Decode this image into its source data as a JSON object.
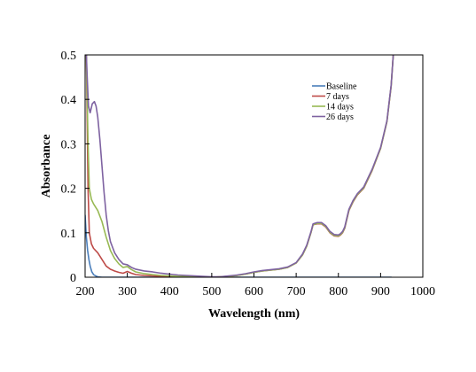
{
  "chart_data": {
    "type": "line",
    "title": "",
    "xlabel": "Wavelength (nm)",
    "ylabel": "Absorbance",
    "xlim": [
      200,
      1000
    ],
    "ylim": [
      0,
      0.5
    ],
    "x_ticks": [
      "200",
      "300",
      "400",
      "500",
      "600",
      "700",
      "800",
      "900",
      "1000"
    ],
    "y_ticks": [
      "0",
      "0.1",
      "0.2",
      "0.3",
      "0.4",
      "0.5"
    ],
    "grid": false,
    "legend_position": "top-right",
    "series": [
      {
        "name": "Baseline",
        "color": "#4a7ebb",
        "x": [
          200,
          203,
          206,
          209,
          212,
          216,
          220,
          225,
          230,
          240,
          260,
          300,
          400,
          500,
          600,
          700,
          730,
          740,
          760,
          780,
          800,
          812,
          825,
          835,
          850,
          870,
          900,
          920,
          926
        ],
        "y": [
          0.14,
          0.09,
          0.06,
          0.04,
          0.025,
          0.012,
          0.006,
          0.003,
          0.001,
          0.0,
          0.0,
          0.0,
          0.0,
          0.0,
          0.0,
          0.0,
          0.0,
          0.0,
          0.0,
          0.0,
          0.0,
          0.0,
          0.0,
          0.0,
          0.0,
          0.0,
          0.0,
          0.0,
          0.0
        ]
      },
      {
        "name": "7 days",
        "color": "#be4b48",
        "x": [
          200,
          203,
          205,
          207,
          210,
          215,
          220,
          230,
          240,
          250,
          260,
          270,
          280,
          290,
          300,
          310,
          320,
          340,
          360,
          380,
          400,
          420,
          440,
          460,
          480,
          500,
          520,
          540,
          560,
          580,
          600,
          620,
          640,
          660,
          680,
          700,
          715,
          725,
          735,
          740,
          750,
          760,
          770,
          780,
          790,
          800,
          805,
          810,
          815,
          820,
          825,
          830,
          835,
          845,
          860,
          880,
          900,
          915,
          925,
          930
        ],
        "y": [
          0.5,
          0.5,
          0.35,
          0.2,
          0.1,
          0.075,
          0.065,
          0.055,
          0.04,
          0.025,
          0.018,
          0.014,
          0.011,
          0.009,
          0.013,
          0.009,
          0.006,
          0.004,
          0.003,
          0.002,
          0.002,
          0.001,
          0.001,
          0.001,
          0.001,
          0.0,
          0.001,
          0.002,
          0.004,
          0.007,
          0.011,
          0.014,
          0.016,
          0.018,
          0.022,
          0.032,
          0.05,
          0.07,
          0.1,
          0.118,
          0.12,
          0.12,
          0.113,
          0.1,
          0.093,
          0.092,
          0.095,
          0.1,
          0.11,
          0.13,
          0.15,
          0.16,
          0.17,
          0.185,
          0.2,
          0.24,
          0.29,
          0.35,
          0.43,
          0.5
        ]
      },
      {
        "name": "14 days",
        "color": "#98b954",
        "x": [
          200,
          203,
          205,
          207,
          210,
          215,
          220,
          230,
          240,
          250,
          260,
          270,
          280,
          290,
          300,
          310,
          320,
          340,
          360,
          380,
          400,
          420,
          440,
          460,
          480,
          500,
          520,
          540,
          560,
          580,
          600,
          620,
          640,
          660,
          680,
          700,
          715,
          725,
          735,
          740,
          750,
          760,
          770,
          780,
          790,
          800,
          805,
          810,
          815,
          820,
          825,
          830,
          835,
          845,
          860,
          880,
          900,
          915,
          925,
          930
        ],
        "y": [
          0.5,
          0.5,
          0.4,
          0.3,
          0.2,
          0.175,
          0.165,
          0.15,
          0.125,
          0.09,
          0.06,
          0.042,
          0.03,
          0.022,
          0.024,
          0.017,
          0.012,
          0.008,
          0.006,
          0.004,
          0.003,
          0.002,
          0.002,
          0.001,
          0.001,
          0.0,
          0.001,
          0.002,
          0.004,
          0.007,
          0.011,
          0.014,
          0.016,
          0.018,
          0.022,
          0.032,
          0.05,
          0.07,
          0.1,
          0.118,
          0.121,
          0.121,
          0.114,
          0.101,
          0.094,
          0.093,
          0.096,
          0.101,
          0.111,
          0.131,
          0.151,
          0.161,
          0.171,
          0.186,
          0.201,
          0.241,
          0.29,
          0.35,
          0.43,
          0.5
        ]
      },
      {
        "name": "26 days",
        "color": "#7e62a1",
        "x": [
          200,
          203,
          205,
          208,
          212,
          217,
          222,
          226,
          230,
          235,
          240,
          245,
          250,
          255,
          260,
          270,
          280,
          290,
          300,
          310,
          320,
          340,
          360,
          380,
          400,
          420,
          440,
          460,
          480,
          500,
          520,
          540,
          560,
          580,
          600,
          620,
          640,
          660,
          680,
          700,
          715,
          725,
          735,
          740,
          750,
          760,
          770,
          780,
          790,
          800,
          805,
          810,
          815,
          820,
          825,
          830,
          835,
          845,
          860,
          880,
          900,
          915,
          925,
          930
        ],
        "y": [
          0.5,
          0.5,
          0.45,
          0.385,
          0.37,
          0.39,
          0.395,
          0.385,
          0.36,
          0.31,
          0.25,
          0.19,
          0.14,
          0.105,
          0.08,
          0.055,
          0.04,
          0.03,
          0.028,
          0.022,
          0.018,
          0.014,
          0.012,
          0.009,
          0.007,
          0.005,
          0.004,
          0.003,
          0.002,
          0.001,
          0.001,
          0.003,
          0.005,
          0.008,
          0.012,
          0.015,
          0.017,
          0.019,
          0.023,
          0.033,
          0.052,
          0.072,
          0.102,
          0.12,
          0.123,
          0.123,
          0.116,
          0.103,
          0.096,
          0.095,
          0.098,
          0.103,
          0.113,
          0.133,
          0.153,
          0.163,
          0.173,
          0.188,
          0.203,
          0.243,
          0.292,
          0.352,
          0.432,
          0.5
        ]
      }
    ]
  }
}
